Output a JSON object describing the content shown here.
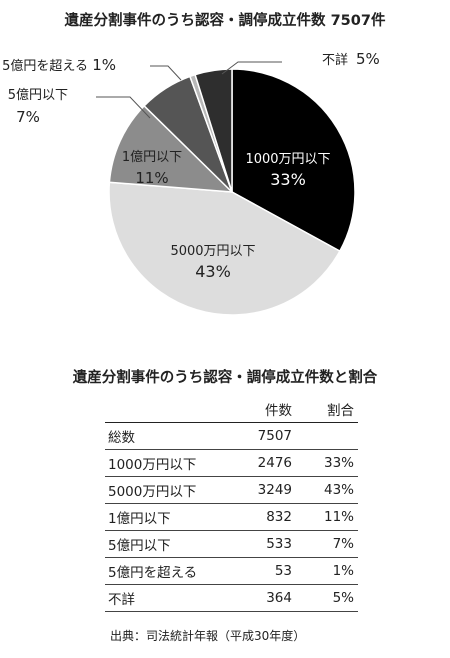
{
  "chart_title": "遺産分割事件のうち認容・調停成立件数 7507件",
  "table_title": "遺産分割事件のうち認容・調停成立件数と割合",
  "source": "出典：司法統計年報（平成30年度）",
  "colors": {
    "1000万円以下": "#000000",
    "5000万円以下": "#dddddd",
    "1億円以下": "#8c8c8c",
    "5億円以下": "#555555",
    "5億円を超える": "#b8b8b8",
    "不詳": "#2e2e2e"
  },
  "chart_data": {
    "type": "pie",
    "title": "遺産分割事件のうち認容・調停成立件数 7507件",
    "total": 7507,
    "slices": [
      {
        "label": "1000万円以下",
        "value": 2476,
        "percent_label": "33%"
      },
      {
        "label": "5000万円以下",
        "value": 3249,
        "percent_label": "43%"
      },
      {
        "label": "1億円以下",
        "value": 832,
        "percent_label": "11%"
      },
      {
        "label": "5億円以下",
        "value": 533,
        "percent_label": "7%"
      },
      {
        "label": "5億円を超える",
        "value": 53,
        "percent_label": "1%"
      },
      {
        "label": "不詳",
        "value": 364,
        "percent_label": "5%"
      }
    ]
  },
  "table": {
    "headers": [
      "",
      "件数",
      "割合"
    ],
    "rows": [
      {
        "name": "総数",
        "count": "7507",
        "pct": ""
      },
      {
        "name": "1000万円以下",
        "count": "2476",
        "pct": "33%"
      },
      {
        "name": "5000万円以下",
        "count": "3249",
        "pct": "43%"
      },
      {
        "name": "1億円以下",
        "count": "832",
        "pct": "11%"
      },
      {
        "name": "5億円以下",
        "count": "533",
        "pct": "7%"
      },
      {
        "name": "5億円を超える",
        "count": "53",
        "pct": "1%"
      },
      {
        "name": "不詳",
        "count": "364",
        "pct": "5%"
      }
    ]
  }
}
